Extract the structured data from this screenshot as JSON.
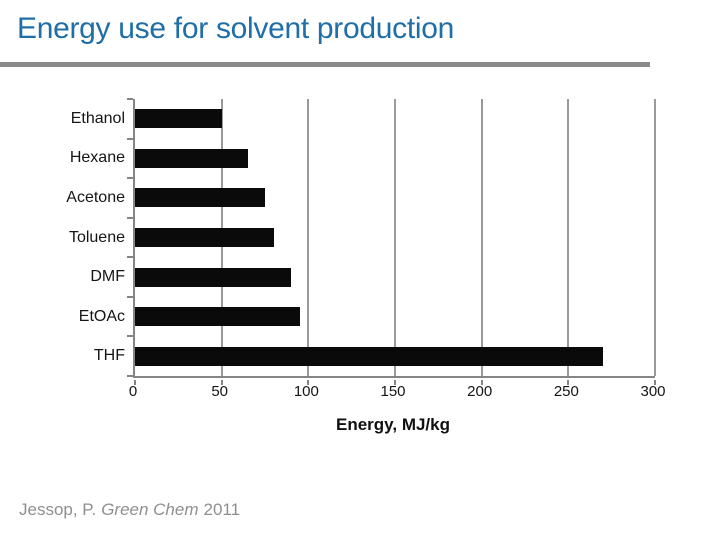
{
  "slide": {
    "title": "Energy use for solvent production",
    "title_color": "#1e6ea7",
    "rule_color": "#8a8a8a",
    "background": "#ffffff"
  },
  "chart_data": {
    "type": "bar",
    "orientation": "horizontal",
    "title": "",
    "categories": [
      "Ethanol",
      "Hexane",
      "Acetone",
      "Toluene",
      "DMF",
      "EtOAc",
      "THF"
    ],
    "values": [
      50,
      65,
      75,
      80,
      90,
      95,
      270
    ],
    "xlabel": "Energy, MJ/kg",
    "ylabel": "",
    "xlim": [
      0,
      300
    ],
    "xticks": [
      0,
      50,
      100,
      150,
      200,
      250,
      300
    ],
    "grid": true,
    "legend": false,
    "bar_color": "#0a0a0a",
    "axis_color": "#858585",
    "gridline_color": "#9a9a9a"
  },
  "citation": {
    "author": "Jessop, P.",
    "journal": "Green Chem",
    "year": "2011",
    "color": "#8f8f8f"
  }
}
